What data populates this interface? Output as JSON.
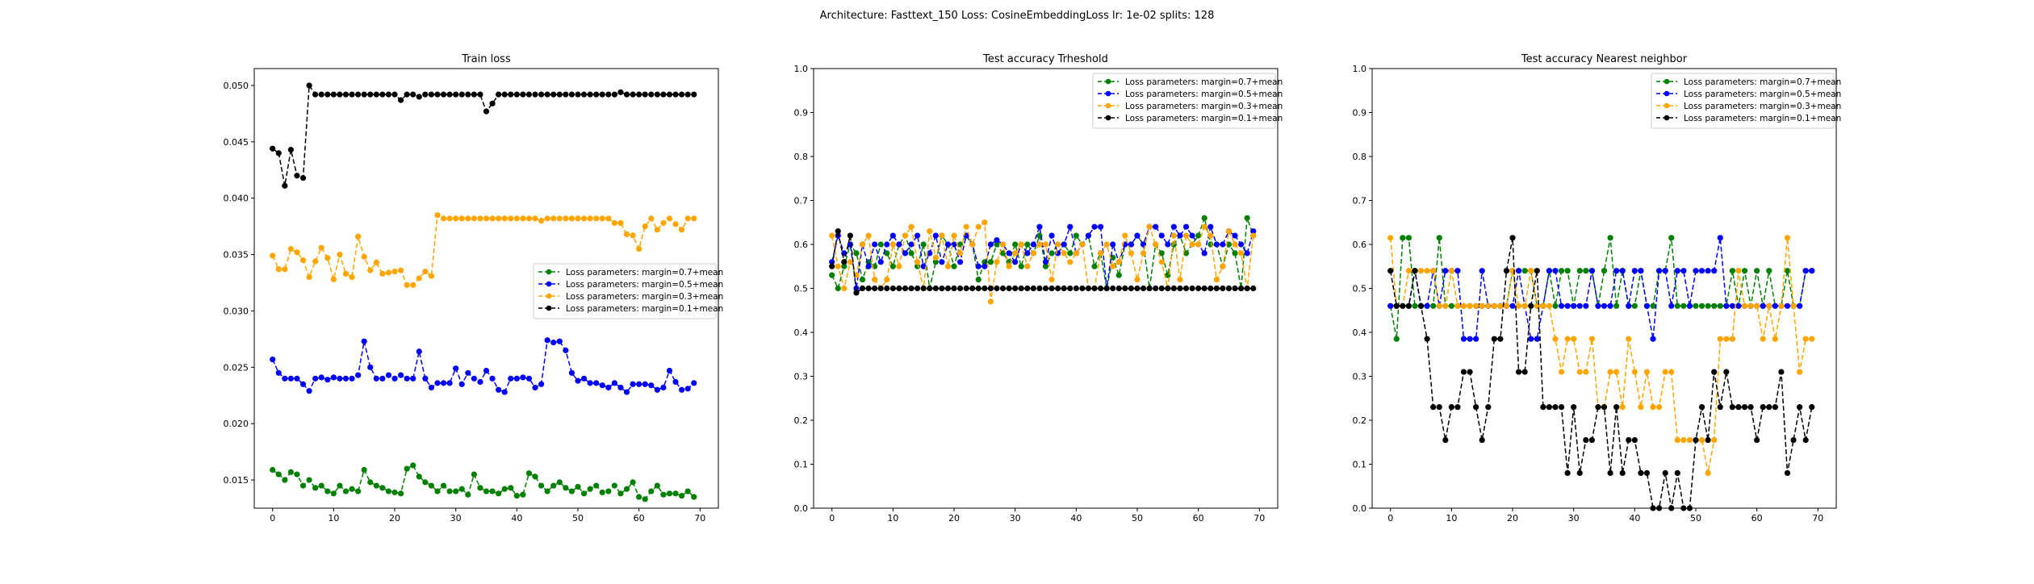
{
  "figure": {
    "suptitle": "Architecture: Fasttext_150 Loss: CosineEmbeddingLoss lr: 1e-02 splits: 128"
  },
  "colors": {
    "margin_0_7": "#008000",
    "margin_0_5": "#0000ff",
    "margin_0_3": "#ffa500",
    "margin_0_1": "#000000"
  },
  "chart_data": [
    {
      "type": "line",
      "title": "Train loss",
      "xlabel": "",
      "ylabel": "",
      "xlim": [
        -3,
        73
      ],
      "ylim": [
        0.0125,
        0.0515
      ],
      "xticks": [
        0,
        10,
        20,
        30,
        40,
        50,
        60,
        70
      ],
      "yticks": [
        0.015,
        0.02,
        0.025,
        0.03,
        0.035,
        0.04,
        0.045,
        0.05
      ],
      "ytick_labels": [
        "0.015",
        "0.020",
        "0.025",
        "0.030",
        "0.035",
        "0.040",
        "0.045",
        "0.050"
      ],
      "grid": false,
      "legend_position": "center-right",
      "series": [
        {
          "name": "Loss parameters: margin=0.7+mean",
          "color": "#008000",
          "values": [
            0.0159,
            0.0155,
            0.015,
            0.0157,
            0.0155,
            0.0145,
            0.015,
            0.0143,
            0.0145,
            0.014,
            0.0138,
            0.0145,
            0.014,
            0.0142,
            0.014,
            0.0159,
            0.0148,
            0.0145,
            0.0143,
            0.014,
            0.0139,
            0.0138,
            0.016,
            0.0163,
            0.0153,
            0.0148,
            0.0145,
            0.014,
            0.0145,
            0.014,
            0.014,
            0.0142,
            0.0137,
            0.0155,
            0.0143,
            0.014,
            0.014,
            0.0138,
            0.0142,
            0.0143,
            0.0136,
            0.0137,
            0.0156,
            0.0153,
            0.0145,
            0.014,
            0.0145,
            0.0148,
            0.0143,
            0.014,
            0.0144,
            0.0138,
            0.0142,
            0.0145,
            0.0139,
            0.014,
            0.0145,
            0.0138,
            0.0142,
            0.0148,
            0.0135,
            0.0133,
            0.014,
            0.0145,
            0.0137,
            0.0138,
            0.0138,
            0.0136,
            0.014,
            0.0135
          ]
        },
        {
          "name": "Loss parameters: margin=0.5+mean",
          "color": "#0000ff",
          "values": [
            0.0257,
            0.0245,
            0.024,
            0.024,
            0.024,
            0.0235,
            0.0229,
            0.024,
            0.0241,
            0.0239,
            0.0241,
            0.024,
            0.024,
            0.024,
            0.0243,
            0.0273,
            0.025,
            0.024,
            0.024,
            0.0243,
            0.024,
            0.0243,
            0.024,
            0.024,
            0.0264,
            0.024,
            0.0232,
            0.0236,
            0.0236,
            0.0236,
            0.0249,
            0.0235,
            0.0245,
            0.024,
            0.0237,
            0.0247,
            0.024,
            0.023,
            0.0228,
            0.024,
            0.024,
            0.0241,
            0.024,
            0.0232,
            0.0235,
            0.0274,
            0.0272,
            0.0273,
            0.0265,
            0.0245,
            0.0238,
            0.024,
            0.0236,
            0.0236,
            0.0234,
            0.0232,
            0.0236,
            0.0232,
            0.0228,
            0.0235,
            0.0235,
            0.0235,
            0.0234,
            0.023,
            0.0232,
            0.0247,
            0.0237,
            0.023,
            0.0231,
            0.0236
          ]
        },
        {
          "name": "Loss parameters: margin=0.3+mean",
          "color": "#ffa500",
          "values": [
            0.0349,
            0.0337,
            0.0337,
            0.0355,
            0.0352,
            0.0345,
            0.033,
            0.0344,
            0.0356,
            0.0347,
            0.0328,
            0.035,
            0.0333,
            0.033,
            0.0366,
            0.0348,
            0.0336,
            0.0343,
            0.0333,
            0.0334,
            0.0335,
            0.0336,
            0.0323,
            0.0323,
            0.0329,
            0.0335,
            0.0331,
            0.0385,
            0.0382,
            0.0382,
            0.0382,
            0.0382,
            0.0382,
            0.0382,
            0.0382,
            0.0382,
            0.0382,
            0.0382,
            0.0382,
            0.0382,
            0.0382,
            0.0382,
            0.0382,
            0.0382,
            0.038,
            0.0382,
            0.0382,
            0.0382,
            0.0382,
            0.0382,
            0.0382,
            0.0382,
            0.0382,
            0.0382,
            0.0382,
            0.0382,
            0.0378,
            0.0378,
            0.0368,
            0.0367,
            0.0355,
            0.0375,
            0.0382,
            0.0372,
            0.0378,
            0.0382,
            0.0377,
            0.0372,
            0.0382,
            0.0382
          ]
        },
        {
          "name": "Loss parameters: margin=0.1+mean",
          "color": "#000000",
          "values": [
            0.0444,
            0.044,
            0.0411,
            0.0443,
            0.042,
            0.0418,
            0.05,
            0.0492,
            0.0492,
            0.0492,
            0.0492,
            0.0492,
            0.0492,
            0.0492,
            0.0492,
            0.0492,
            0.0492,
            0.0492,
            0.0492,
            0.0492,
            0.0492,
            0.0487,
            0.0492,
            0.0492,
            0.049,
            0.0492,
            0.0492,
            0.0492,
            0.0492,
            0.0492,
            0.0492,
            0.0492,
            0.0492,
            0.0492,
            0.0492,
            0.0477,
            0.0484,
            0.0492,
            0.0492,
            0.0492,
            0.0492,
            0.0492,
            0.0492,
            0.0492,
            0.0492,
            0.0492,
            0.0492,
            0.0492,
            0.0492,
            0.0492,
            0.0492,
            0.0492,
            0.0492,
            0.0492,
            0.0492,
            0.0492,
            0.0492,
            0.0494,
            0.0492,
            0.0492,
            0.0492,
            0.0492,
            0.0492,
            0.0492,
            0.0492,
            0.0492,
            0.0492,
            0.0492,
            0.0492,
            0.0492
          ]
        }
      ]
    },
    {
      "type": "line",
      "title": "Test accuracy Trheshold",
      "xlabel": "",
      "ylabel": "",
      "xlim": [
        -3,
        73
      ],
      "ylim": [
        0,
        1
      ],
      "xticks": [
        0,
        10,
        20,
        30,
        40,
        50,
        60,
        70
      ],
      "yticks": [
        0,
        0.1,
        0.2,
        0.3,
        0.4,
        0.5,
        0.6,
        0.7,
        0.8,
        0.9,
        1.0
      ],
      "ytick_labels": [
        "0.0",
        "0.1",
        "0.2",
        "0.3",
        "0.4",
        "0.5",
        "0.6",
        "0.7",
        "0.8",
        "0.9",
        "1.0"
      ],
      "grid": false,
      "legend_position": "upper-right",
      "series": [
        {
          "name": "Loss parameters: margin=0.7+mean",
          "color": "#008000",
          "values": [
            0.53,
            0.5,
            0.55,
            0.6,
            0.58,
            0.52,
            0.56,
            0.55,
            0.6,
            0.58,
            0.55,
            0.6,
            0.62,
            0.58,
            0.55,
            0.6,
            0.5,
            0.56,
            0.62,
            0.6,
            0.55,
            0.6,
            0.62,
            0.6,
            0.52,
            0.56,
            0.56,
            0.6,
            0.58,
            0.56,
            0.6,
            0.55,
            0.6,
            0.58,
            0.62,
            0.55,
            0.58,
            0.6,
            0.6,
            0.58,
            0.62,
            0.6,
            0.62,
            0.55,
            0.58,
            0.5,
            0.57,
            0.53,
            0.6,
            0.6,
            0.62,
            0.6,
            0.5,
            0.6,
            0.58,
            0.53,
            0.6,
            0.62,
            0.58,
            0.6,
            0.62,
            0.66,
            0.6,
            0.6,
            0.55,
            0.6,
            0.58,
            0.5,
            0.66,
            0.62
          ]
        },
        {
          "name": "Loss parameters: margin=0.5+mean",
          "color": "#0000ff",
          "values": [
            0.56,
            0.62,
            0.58,
            0.6,
            0.5,
            0.6,
            0.55,
            0.6,
            0.56,
            0.6,
            0.62,
            0.6,
            0.58,
            0.6,
            0.62,
            0.55,
            0.58,
            0.62,
            0.56,
            0.6,
            0.6,
            0.56,
            0.62,
            0.6,
            0.55,
            0.55,
            0.6,
            0.61,
            0.6,
            0.58,
            0.56,
            0.6,
            0.58,
            0.6,
            0.64,
            0.56,
            0.62,
            0.58,
            0.6,
            0.64,
            0.58,
            0.6,
            0.62,
            0.64,
            0.64,
            0.5,
            0.6,
            0.56,
            0.6,
            0.6,
            0.62,
            0.6,
            0.64,
            0.64,
            0.62,
            0.6,
            0.64,
            0.62,
            0.64,
            0.62,
            0.6,
            0.58,
            0.64,
            0.6,
            0.6,
            0.63,
            0.62,
            0.6,
            0.58,
            0.63
          ]
        },
        {
          "name": "Loss parameters: margin=0.3+mean",
          "color": "#ffa500",
          "values": [
            0.62,
            0.55,
            0.5,
            0.56,
            0.53,
            0.6,
            0.62,
            0.52,
            0.5,
            0.52,
            0.6,
            0.55,
            0.62,
            0.64,
            0.56,
            0.5,
            0.63,
            0.57,
            0.62,
            0.55,
            0.62,
            0.58,
            0.64,
            0.6,
            0.64,
            0.65,
            0.47,
            0.56,
            0.6,
            0.55,
            0.58,
            0.6,
            0.55,
            0.58,
            0.6,
            0.6,
            0.52,
            0.6,
            0.58,
            0.56,
            0.58,
            0.6,
            0.5,
            0.5,
            0.58,
            0.6,
            0.55,
            0.56,
            0.62,
            0.58,
            0.52,
            0.58,
            0.64,
            0.6,
            0.56,
            0.5,
            0.62,
            0.52,
            0.62,
            0.6,
            0.6,
            0.64,
            0.62,
            0.52,
            0.55,
            0.63,
            0.6,
            0.58,
            0.5,
            0.62
          ]
        },
        {
          "name": "Loss parameters: margin=0.1+mean",
          "color": "#000000",
          "values": [
            0.55,
            0.63,
            0.56,
            0.62,
            0.49,
            0.5,
            0.5,
            0.5,
            0.5,
            0.5,
            0.5,
            0.5,
            0.5,
            0.5,
            0.5,
            0.5,
            0.5,
            0.5,
            0.5,
            0.5,
            0.5,
            0.5,
            0.5,
            0.5,
            0.5,
            0.5,
            0.5,
            0.5,
            0.5,
            0.5,
            0.5,
            0.5,
            0.5,
            0.5,
            0.5,
            0.5,
            0.5,
            0.5,
            0.5,
            0.5,
            0.5,
            0.5,
            0.5,
            0.5,
            0.5,
            0.5,
            0.5,
            0.5,
            0.5,
            0.5,
            0.5,
            0.5,
            0.5,
            0.5,
            0.5,
            0.5,
            0.5,
            0.5,
            0.5,
            0.5,
            0.5,
            0.5,
            0.5,
            0.5,
            0.5,
            0.5,
            0.5,
            0.5,
            0.5,
            0.5
          ]
        }
      ]
    },
    {
      "type": "line",
      "title": "Test accuracy Nearest neighbor",
      "xlabel": "",
      "ylabel": "",
      "xlim": [
        -3,
        73
      ],
      "ylim": [
        0,
        1
      ],
      "xticks": [
        0,
        10,
        20,
        30,
        40,
        50,
        60,
        70
      ],
      "yticks": [
        0,
        0.1,
        0.2,
        0.3,
        0.4,
        0.5,
        0.6,
        0.7,
        0.8,
        0.9,
        1.0
      ],
      "ytick_labels": [
        "0.0",
        "0.1",
        "0.2",
        "0.3",
        "0.4",
        "0.5",
        "0.6",
        "0.7",
        "0.8",
        "0.9",
        "1.0"
      ],
      "grid": false,
      "legend_position": "upper-right",
      "series": [
        {
          "name": "Loss parameters: margin=0.7+mean",
          "color": "#008000",
          "values": [
            0.46,
            0.385,
            0.615,
            0.615,
            0.46,
            0.46,
            0.46,
            0.46,
            0.615,
            0.46,
            0.46,
            0.46,
            0.46,
            0.46,
            0.46,
            0.46,
            0.46,
            0.46,
            0.46,
            0.46,
            0.54,
            0.54,
            0.54,
            0.54,
            0.46,
            0.46,
            0.54,
            0.46,
            0.54,
            0.54,
            0.46,
            0.54,
            0.54,
            0.54,
            0.46,
            0.54,
            0.615,
            0.46,
            0.54,
            0.46,
            0.46,
            0.54,
            0.46,
            0.46,
            0.54,
            0.54,
            0.615,
            0.46,
            0.46,
            0.46,
            0.46,
            0.46,
            0.46,
            0.46,
            0.46,
            0.46,
            0.54,
            0.46,
            0.54,
            0.46,
            0.54,
            0.46,
            0.54,
            0.46,
            0.46,
            0.54,
            0.46,
            0.46,
            0.54,
            0.54
          ]
        },
        {
          "name": "Loss parameters: margin=0.5+mean",
          "color": "#0000ff",
          "values": [
            0.46,
            0.46,
            0.46,
            0.46,
            0.54,
            0.46,
            0.46,
            0.54,
            0.46,
            0.54,
            0.54,
            0.54,
            0.385,
            0.385,
            0.385,
            0.54,
            0.46,
            0.46,
            0.46,
            0.46,
            0.46,
            0.54,
            0.46,
            0.385,
            0.385,
            0.46,
            0.54,
            0.54,
            0.46,
            0.46,
            0.46,
            0.46,
            0.46,
            0.54,
            0.46,
            0.46,
            0.46,
            0.54,
            0.54,
            0.46,
            0.54,
            0.54,
            0.46,
            0.385,
            0.54,
            0.54,
            0.46,
            0.54,
            0.54,
            0.46,
            0.54,
            0.54,
            0.54,
            0.54,
            0.615,
            0.46,
            0.46,
            0.46,
            0.46,
            0.46,
            0.46,
            0.46,
            0.46,
            0.46,
            0.46,
            0.46,
            0.46,
            0.46,
            0.54,
            0.54
          ]
        },
        {
          "name": "Loss parameters: margin=0.3+mean",
          "color": "#ffa500",
          "values": [
            0.615,
            0.46,
            0.46,
            0.54,
            0.54,
            0.54,
            0.54,
            0.54,
            0.46,
            0.46,
            0.54,
            0.46,
            0.46,
            0.46,
            0.46,
            0.46,
            0.46,
            0.46,
            0.46,
            0.46,
            0.54,
            0.46,
            0.46,
            0.54,
            0.46,
            0.46,
            0.46,
            0.385,
            0.31,
            0.385,
            0.385,
            0.31,
            0.31,
            0.385,
            0.23,
            0.23,
            0.31,
            0.31,
            0.23,
            0.385,
            0.31,
            0.23,
            0.31,
            0.23,
            0.23,
            0.31,
            0.31,
            0.155,
            0.155,
            0.155,
            0.155,
            0.155,
            0.08,
            0.155,
            0.385,
            0.385,
            0.385,
            0.54,
            0.46,
            0.46,
            0.46,
            0.385,
            0.46,
            0.385,
            0.46,
            0.615,
            0.46,
            0.31,
            0.385,
            0.385
          ]
        },
        {
          "name": "Loss parameters: margin=0.1+mean",
          "color": "#000000",
          "values": [
            0.54,
            0.46,
            0.46,
            0.46,
            0.54,
            0.46,
            0.385,
            0.23,
            0.23,
            0.155,
            0.23,
            0.23,
            0.31,
            0.31,
            0.23,
            0.155,
            0.23,
            0.385,
            0.385,
            0.54,
            0.615,
            0.31,
            0.31,
            0.46,
            0.54,
            0.23,
            0.23,
            0.23,
            0.23,
            0.08,
            0.23,
            0.08,
            0.155,
            0.155,
            0.23,
            0.23,
            0.08,
            0.23,
            0.08,
            0.155,
            0.155,
            0.08,
            0.08,
            0.0,
            0.0,
            0.08,
            0.0,
            0.08,
            0.0,
            0.0,
            0.155,
            0.23,
            0.155,
            0.31,
            0.23,
            0.31,
            0.23,
            0.23,
            0.23,
            0.23,
            0.155,
            0.23,
            0.23,
            0.23,
            0.31,
            0.08,
            0.155,
            0.23,
            0.155,
            0.23
          ]
        }
      ]
    }
  ]
}
